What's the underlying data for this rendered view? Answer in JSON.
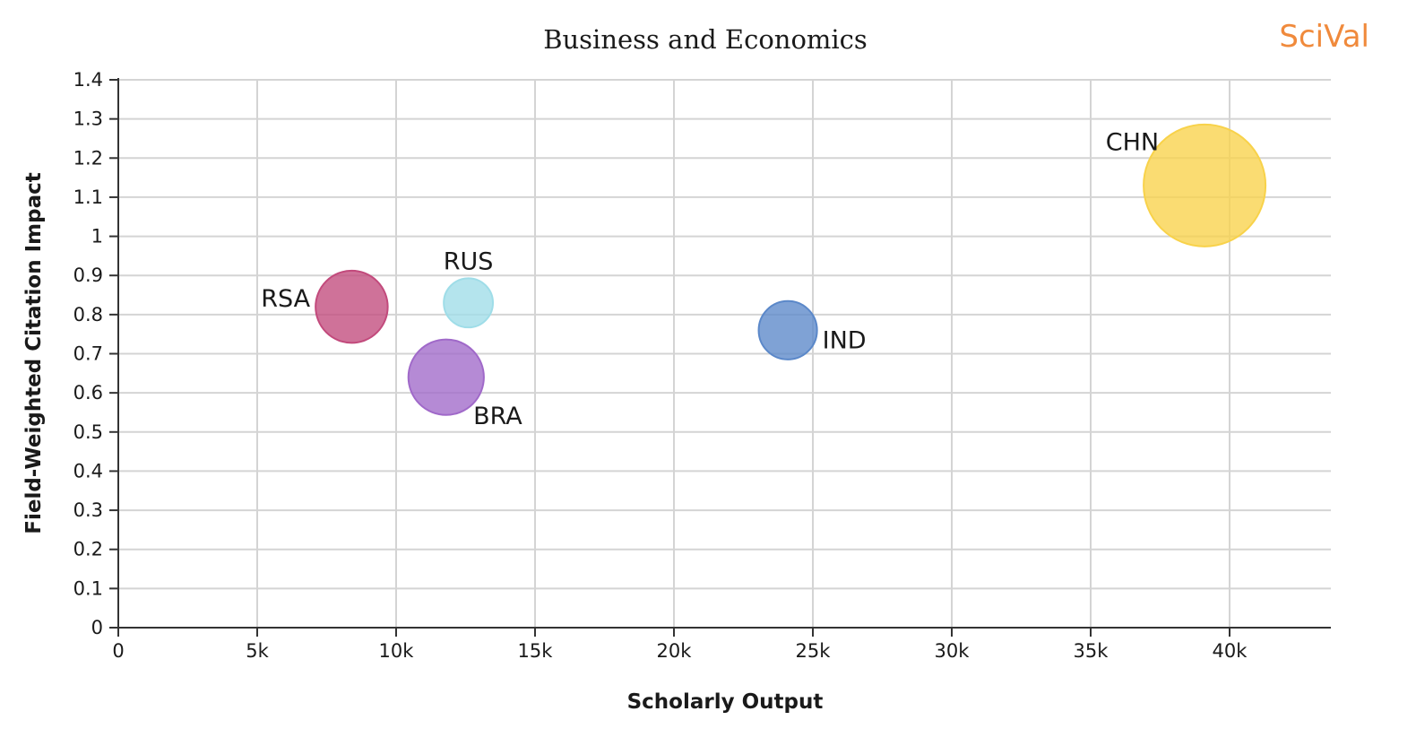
{
  "brand": {
    "text": "SciVal",
    "color": "#f08a3c"
  },
  "chart_data": {
    "type": "scatter",
    "title": "Business and Economics",
    "xlabel": "Scholarly Output",
    "ylabel": "Field-Weighted Citation Impact",
    "xlim": [
      0,
      43000
    ],
    "ylim": [
      0,
      1.4
    ],
    "x_ticks": [
      {
        "value": 0,
        "label": "0"
      },
      {
        "value": 5000,
        "label": "5k"
      },
      {
        "value": 10000,
        "label": "10k"
      },
      {
        "value": 15000,
        "label": "15k"
      },
      {
        "value": 20000,
        "label": "20k"
      },
      {
        "value": 25000,
        "label": "25k"
      },
      {
        "value": 30000,
        "label": "30k"
      },
      {
        "value": 35000,
        "label": "35k"
      },
      {
        "value": 40000,
        "label": "40k"
      }
    ],
    "y_ticks": [
      {
        "value": 0,
        "label": "0"
      },
      {
        "value": 0.1,
        "label": "0.1"
      },
      {
        "value": 0.2,
        "label": "0.2"
      },
      {
        "value": 0.3,
        "label": "0.3"
      },
      {
        "value": 0.4,
        "label": "0.4"
      },
      {
        "value": 0.5,
        "label": "0.5"
      },
      {
        "value": 0.6,
        "label": "0.6"
      },
      {
        "value": 0.7,
        "label": "0.7"
      },
      {
        "value": 0.8,
        "label": "0.8"
      },
      {
        "value": 0.9,
        "label": "0.9"
      },
      {
        "value": 1.0,
        "label": "1"
      },
      {
        "value": 1.1,
        "label": "1.1"
      },
      {
        "value": 1.2,
        "label": "1.2"
      },
      {
        "value": 1.3,
        "label": "1.3"
      },
      {
        "value": 1.4,
        "label": "1.4"
      }
    ],
    "grid": true,
    "points": [
      {
        "label": "RSA",
        "x": 8400,
        "y": 0.82,
        "size": 8400,
        "color": "#c24a7c",
        "label_side": "left"
      },
      {
        "label": "RUS",
        "x": 12600,
        "y": 0.83,
        "size": 3900,
        "color": "#9fdde8",
        "label_side": "top"
      },
      {
        "label": "BRA",
        "x": 11800,
        "y": 0.64,
        "size": 9200,
        "color": "#a069c9",
        "label_side": "bottom-right"
      },
      {
        "label": "IND",
        "x": 24100,
        "y": 0.76,
        "size": 5500,
        "color": "#5b88c9",
        "label_side": "right"
      },
      {
        "label": "CHN",
        "x": 39100,
        "y": 1.13,
        "size": 24000,
        "color": "#f8d24a",
        "label_side": "top-left"
      }
    ]
  }
}
